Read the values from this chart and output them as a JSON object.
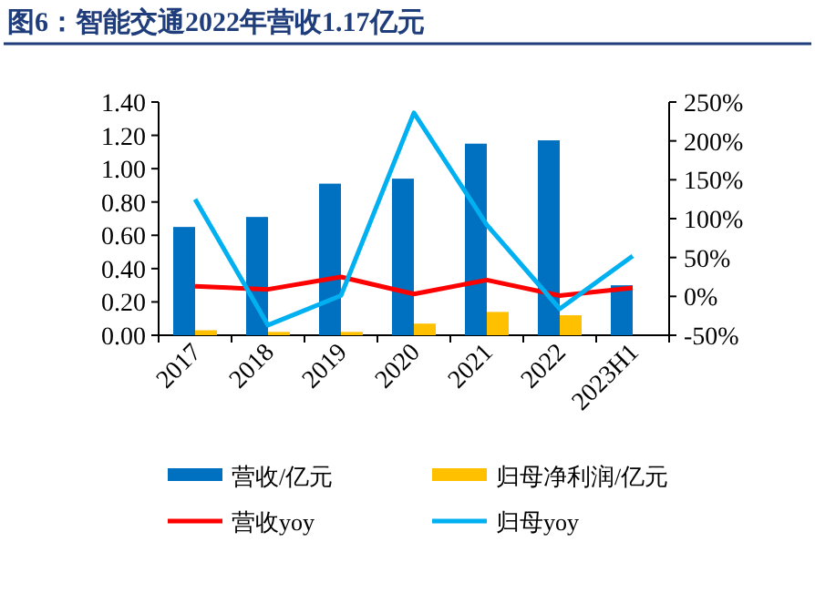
{
  "chart_data": {
    "type": "bar",
    "title": "图6：智能交通2022年营收1.17亿元",
    "categories": [
      "2017",
      "2018",
      "2019",
      "2020",
      "2021",
      "2022",
      "2023H1"
    ],
    "series": [
      {
        "name": "营收/亿元",
        "color": "#0070c0",
        "values": [
          0.65,
          0.71,
          0.91,
          0.94,
          1.15,
          1.17,
          0.3
        ]
      },
      {
        "name": "归母净利润/亿元",
        "color": "#ffc000",
        "values": [
          0.03,
          0.02,
          0.02,
          0.07,
          0.14,
          0.12,
          null
        ]
      },
      {
        "name": "营收yoy",
        "type": "line",
        "axis": "y2",
        "color": "#ff0000",
        "values": [
          13,
          9,
          25,
          3,
          21,
          1,
          11
        ]
      },
      {
        "name": "归母yoy",
        "type": "line",
        "axis": "y2",
        "color": "#00b0f0",
        "values": [
          125,
          -37,
          1,
          236,
          92,
          -16,
          52
        ]
      }
    ],
    "ylim": [
      0,
      1.4
    ],
    "yticks": [
      {
        "value": 0,
        "label": "0.00"
      },
      {
        "value": 0.2,
        "label": "0.20"
      },
      {
        "value": 0.4,
        "label": "0.40"
      },
      {
        "value": 0.6,
        "label": "0.60"
      },
      {
        "value": 0.8,
        "label": "0.80"
      },
      {
        "value": 1.0,
        "label": "1.00"
      },
      {
        "value": 1.2,
        "label": "1.20"
      },
      {
        "value": 1.4,
        "label": "1.40"
      }
    ],
    "y2lim": [
      -50,
      250
    ],
    "y2ticks": [
      {
        "value": -50,
        "label": "-50%"
      },
      {
        "value": 0,
        "label": "0%"
      },
      {
        "value": 50,
        "label": "50%"
      },
      {
        "value": 100,
        "label": "100%"
      },
      {
        "value": 150,
        "label": "150%"
      },
      {
        "value": 200,
        "label": "200%"
      },
      {
        "value": 250,
        "label": "250%"
      }
    ],
    "legend": "bottom",
    "grid": false
  }
}
